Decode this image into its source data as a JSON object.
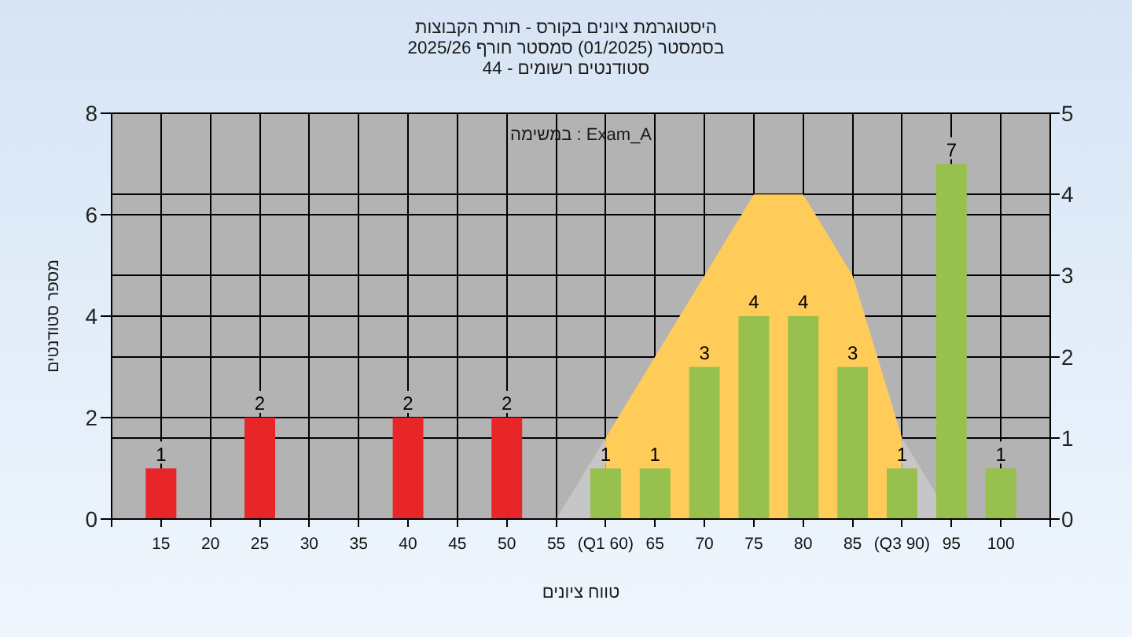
{
  "chart_data": {
    "type": "bar",
    "title": "היסטוגרמת ציונים בקורס - תורת הקבוצות",
    "subtitle": "בסמסטר (01/2025) סמסטר חורף 2025/26\nסטודנטים רשומים - 44",
    "xlabel": "טווח ציונים",
    "ylabel": "מספר סטודנטים",
    "annotations": [
      "במשימה : Exam_A"
    ],
    "xlim": [
      10,
      105
    ],
    "xticks": [
      {
        "value": 10,
        "label": null
      },
      15,
      20,
      25,
      30,
      35,
      40,
      45,
      50,
      55,
      {
        "value": 60,
        "label": "(Q1 60)"
      },
      65,
      70,
      75,
      80,
      85,
      {
        "value": 90,
        "label": "(Q3 90)"
      },
      95,
      100,
      {
        "value": 105,
        "label": null
      }
    ],
    "ylim": [
      0,
      8
    ],
    "yticks": [
      0,
      2,
      4,
      6,
      8
    ],
    "y2lim": [
      0,
      5
    ],
    "y2ticks": [
      0,
      1,
      2,
      3,
      4,
      5
    ],
    "grid": true,
    "series": [
      {
        "type": "area",
        "axis": "y2",
        "color": "#c6c6c6",
        "x": [
          55,
          60
        ],
        "values": [
          0,
          1
        ]
      },
      {
        "type": "area",
        "axis": "y2",
        "color": "#ffcc5a",
        "x": [
          60,
          65,
          70,
          75,
          80,
          85,
          90
        ],
        "values": [
          1,
          2,
          3,
          4,
          4,
          3,
          1
        ]
      },
      {
        "type": "area",
        "axis": "y2",
        "color": "#c6c6c6",
        "x": [
          90,
          95
        ],
        "values": [
          1,
          0
        ]
      },
      {
        "data_labels": true,
        "x": [
          15,
          25,
          40,
          50,
          60,
          65,
          70,
          75,
          80,
          85,
          90,
          95,
          100
        ],
        "values": [
          1,
          2,
          2,
          2,
          1,
          1,
          3,
          4,
          4,
          3,
          1,
          7,
          1
        ],
        "colors": [
          "#e8262a",
          "#e8262a",
          "#e8262a",
          "#e8262a",
          "#98c04e",
          "#98c04e",
          "#98c04e",
          "#98c04e",
          "#98c04e",
          "#98c04e",
          "#98c04e",
          "#98c04e",
          "#98c04e"
        ]
      }
    ]
  }
}
